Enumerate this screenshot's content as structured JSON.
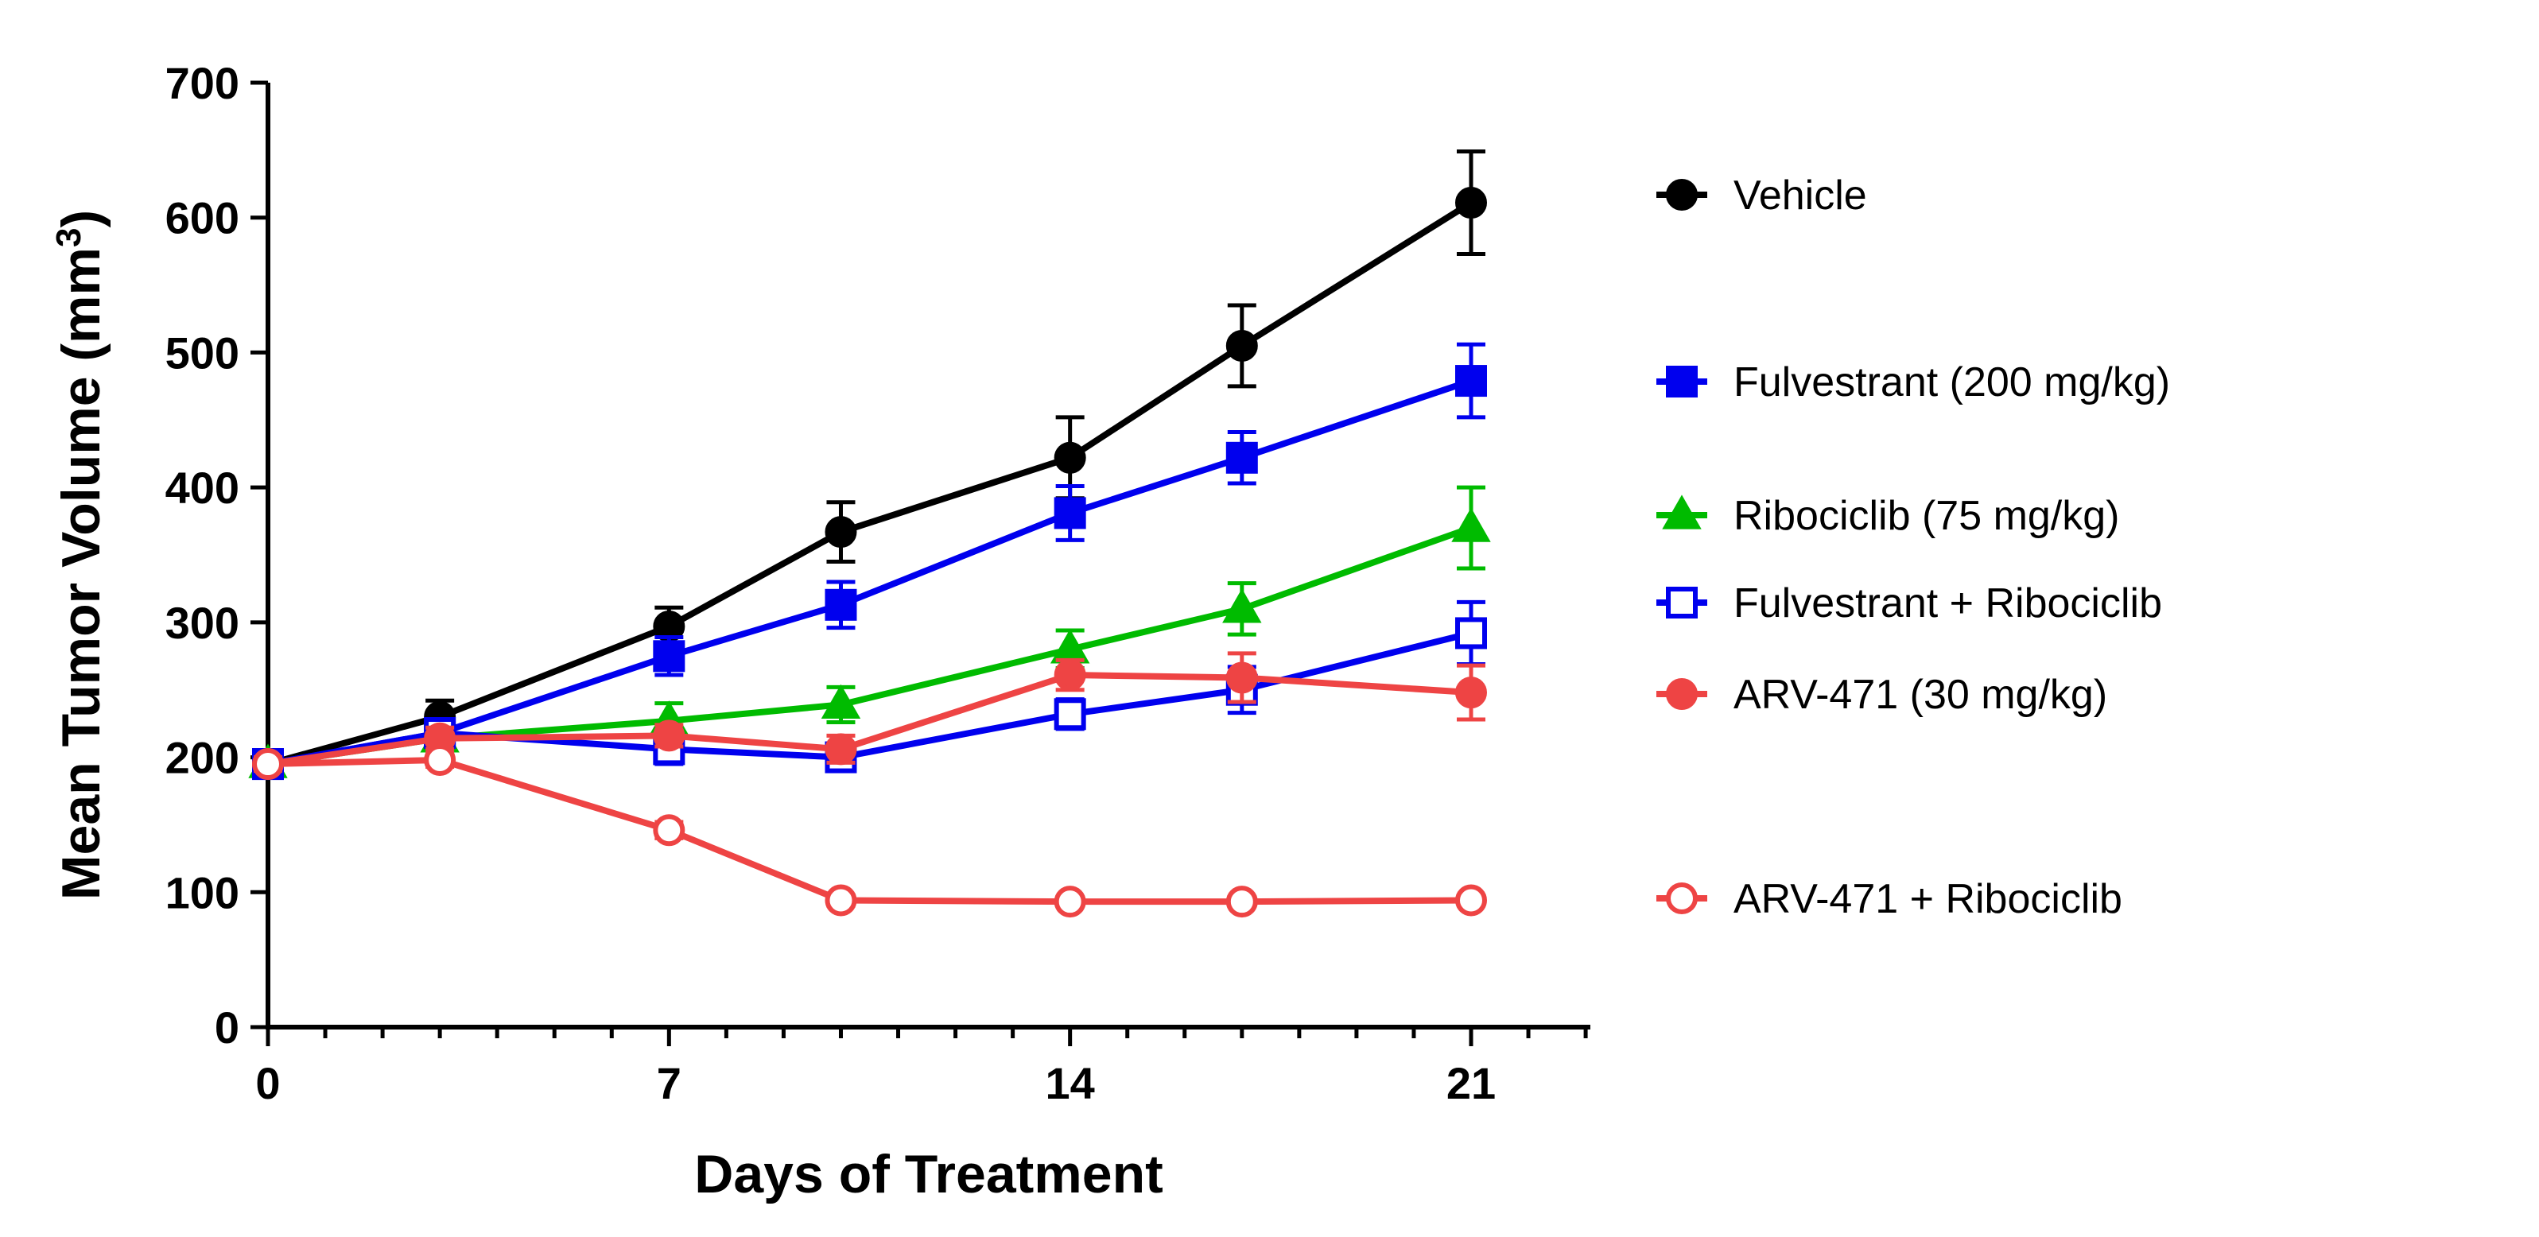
{
  "chart_data": {
    "type": "line",
    "xlabel": "Days of Treatment",
    "ylabel": "Mean Tumor Volume (mm",
    "ylabel_sup": "3",
    "ylabel_close": ")",
    "xlim": [
      0,
      23
    ],
    "ylim": [
      0,
      700
    ],
    "xticks": [
      0,
      7,
      14,
      21
    ],
    "yticks": [
      0,
      100,
      200,
      300,
      400,
      500,
      600,
      700
    ],
    "x": [
      0,
      3,
      7,
      10,
      14,
      17,
      21
    ],
    "series": [
      {
        "name": "Vehicle",
        "color": "#000000",
        "marker": "circle",
        "filled": true,
        "values": [
          195,
          230,
          297,
          367,
          422,
          505,
          611
        ],
        "errors": [
          6,
          12,
          14,
          22,
          30,
          30,
          38
        ]
      },
      {
        "name": "Fulvestrant (200 mg/kg)",
        "color": "#0000ee",
        "marker": "square",
        "filled": true,
        "values": [
          195,
          218,
          275,
          313,
          381,
          422,
          479
        ],
        "errors": [
          5,
          10,
          14,
          17,
          20,
          19,
          27
        ]
      },
      {
        "name": "Ribociclib (75 mg/kg)",
        "color": "#00bb00",
        "marker": "triangle",
        "filled": true,
        "values": [
          195,
          214,
          227,
          239,
          280,
          310,
          370
        ],
        "errors": [
          5,
          8,
          13,
          13,
          14,
          19,
          30
        ]
      },
      {
        "name": "Fulvestrant + Ribociclib",
        "color": "#0000ee",
        "marker": "square",
        "filled": false,
        "values": [
          195,
          218,
          206,
          200,
          232,
          250,
          292
        ],
        "errors": [
          5,
          9,
          11,
          9,
          11,
          17,
          23
        ]
      },
      {
        "name": "ARV-471 (30 mg/kg)",
        "color": "#ee4444",
        "marker": "circle",
        "filled": true,
        "values": [
          195,
          214,
          216,
          206,
          261,
          259,
          248
        ],
        "errors": [
          5,
          8,
          8,
          10,
          11,
          18,
          20
        ]
      },
      {
        "name": "ARV-471 + Ribociclib",
        "color": "#ee4444",
        "marker": "circle",
        "filled": false,
        "values": [
          195,
          198,
          146,
          94,
          93,
          93,
          94
        ],
        "errors": [
          4,
          5,
          6,
          4,
          3,
          3,
          3
        ]
      }
    ],
    "legend_position": "right"
  }
}
